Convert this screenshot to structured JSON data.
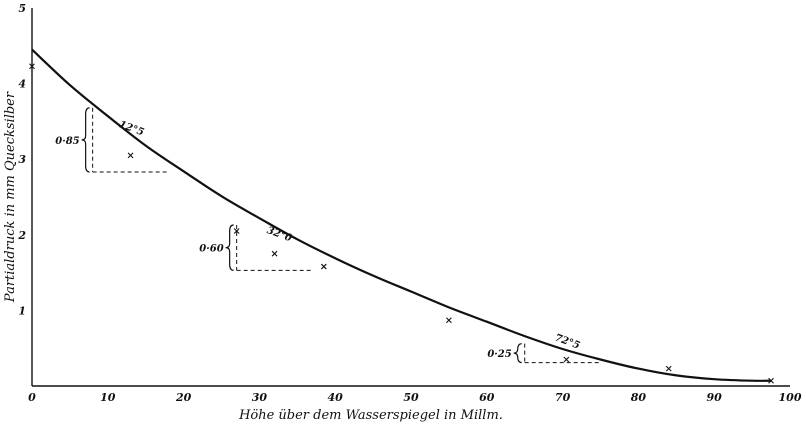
{
  "chart_data": {
    "type": "line",
    "xlabel": "Höhe über dem Wasserspiegel in Millm.",
    "ylabel": "Partialdruck in mm Quecksilber",
    "xlim": [
      0,
      100
    ],
    "ylim": [
      0,
      5
    ],
    "x_ticks": [
      "0",
      "10",
      "20",
      "30",
      "40",
      "50",
      "60",
      "70",
      "80",
      "90",
      "100"
    ],
    "y_ticks": [
      "1",
      "2",
      "3",
      "4",
      "5"
    ],
    "grid": false,
    "curve": {
      "x": [
        0,
        5,
        10,
        15,
        20,
        25,
        30,
        35,
        40,
        45,
        50,
        55,
        60,
        65,
        70,
        75,
        80,
        85,
        90,
        95,
        97.5
      ],
      "y": [
        4.45,
        3.98,
        3.57,
        3.18,
        2.84,
        2.51,
        2.22,
        1.94,
        1.69,
        1.46,
        1.25,
        1.04,
        0.85,
        0.66,
        0.49,
        0.35,
        0.23,
        0.14,
        0.09,
        0.07,
        0.07
      ]
    },
    "observed_points": {
      "x": [
        0,
        13,
        27,
        32,
        38.5,
        55,
        70.5,
        84,
        97.5
      ],
      "y": [
        4.23,
        3.05,
        2.05,
        1.75,
        1.58,
        0.87,
        0.35,
        0.23,
        0.07
      ]
    },
    "triangles": [
      {
        "label": "0·85",
        "x1": 8,
        "x2": 18,
        "y_top": 3.68,
        "y_bottom": 2.83
      },
      {
        "label": "0·60",
        "x1": 27,
        "x2": 37,
        "y_top": 2.13,
        "y_bottom": 1.53
      },
      {
        "label": "0·25",
        "x1": 65,
        "x2": 75,
        "y_top": 0.56,
        "y_bottom": 0.31
      }
    ],
    "curve_labels": [
      {
        "text": "12°5",
        "x": 13,
        "y": 3.37
      },
      {
        "text": "32°0",
        "x": 32.5,
        "y": 1.97
      },
      {
        "text": "72°5",
        "x": 70.5,
        "y": 0.55
      }
    ]
  }
}
